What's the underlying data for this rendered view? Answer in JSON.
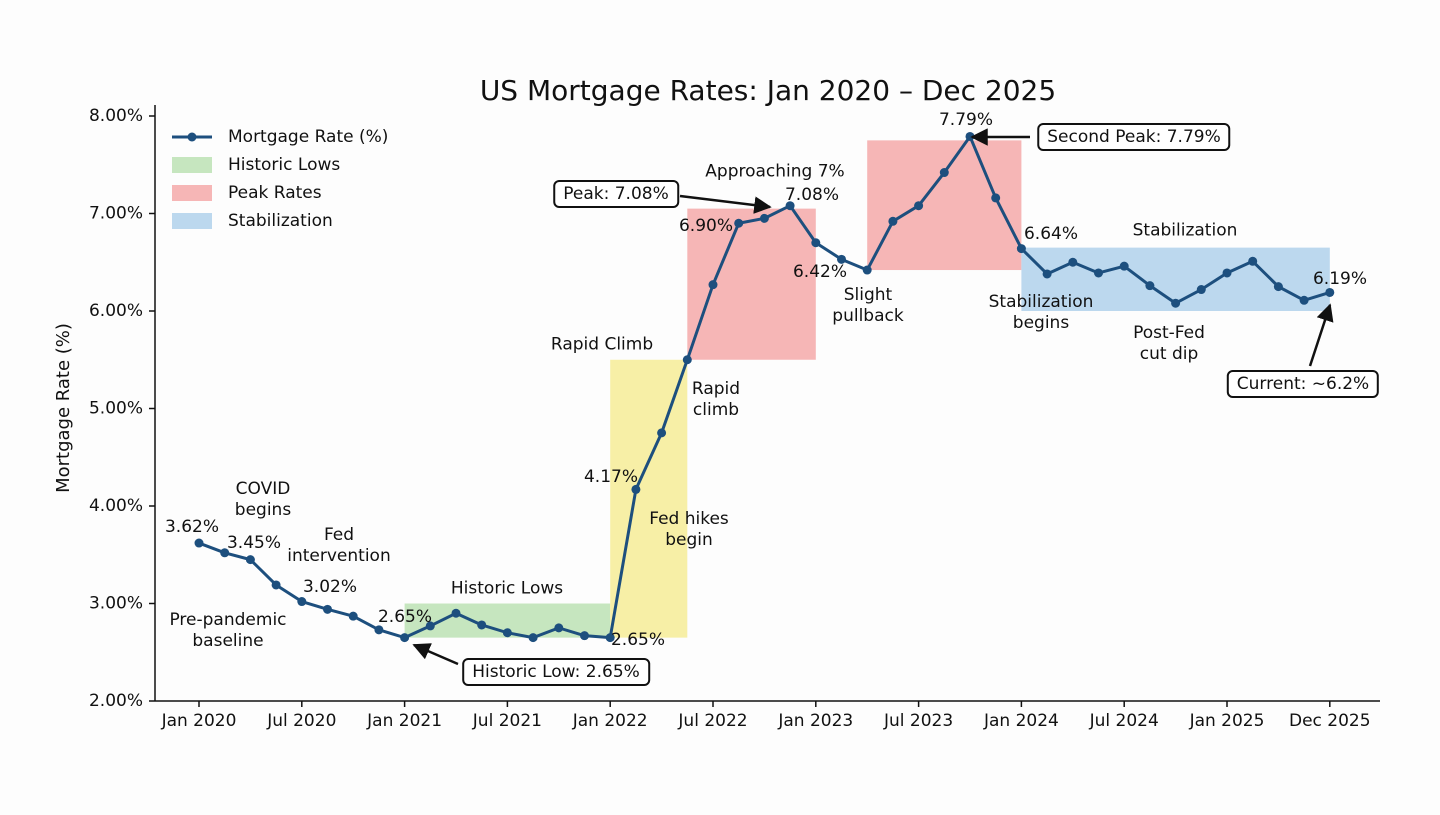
{
  "chart_data": {
    "type": "line",
    "title": "US Mortgage Rates: Jan 2020 – Dec 2025",
    "y_label": "Mortgage Rate (%)",
    "categories": [
      "Jan 2020",
      null,
      null,
      null,
      "Jul 2020",
      null,
      null,
      null,
      "Jan 2021",
      null,
      null,
      null,
      "Jul 2021",
      null,
      null,
      null,
      "Jan 2022",
      null,
      null,
      null,
      "Jul 2022",
      null,
      null,
      null,
      "Jan 2023",
      null,
      null,
      null,
      "Jul 2023",
      null,
      null,
      null,
      "Jan 2024",
      null,
      null,
      null,
      "Jul 2024",
      null,
      null,
      null,
      "Jan 2025",
      null,
      null,
      null,
      "Dec 2025"
    ],
    "series": [
      {
        "name": "Mortgage Rate (%)",
        "color": "#1d4f7e",
        "values": [
          3.62,
          3.52,
          3.45,
          3.19,
          3.02,
          2.94,
          2.87,
          2.73,
          2.65,
          2.77,
          2.9,
          2.78,
          2.7,
          2.65,
          2.75,
          2.67,
          2.65,
          4.17,
          4.75,
          5.5,
          6.27,
          6.9,
          6.95,
          7.08,
          6.7,
          6.53,
          6.42,
          6.92,
          7.08,
          7.42,
          7.79,
          7.16,
          6.64,
          6.38,
          6.5,
          6.39,
          6.46,
          6.26,
          6.08,
          6.22,
          6.39,
          6.51,
          6.25,
          6.11,
          6.19
        ],
        "value_labels": [
          "3.62%",
          null,
          "3.45%",
          null,
          "3.02%",
          null,
          null,
          null,
          "2.65%",
          null,
          null,
          null,
          null,
          null,
          null,
          null,
          "2.65%",
          "4.17%",
          null,
          null,
          null,
          "6.90%",
          null,
          "7.08%",
          null,
          null,
          "6.42%",
          null,
          null,
          null,
          "7.79%",
          null,
          "6.64%",
          null,
          null,
          null,
          null,
          null,
          null,
          null,
          null,
          null,
          null,
          null,
          "6.19%"
        ]
      }
    ],
    "regions": [
      {
        "name": "Historic Lows",
        "color": "#c6e6bf",
        "x": [
          8,
          16
        ],
        "y": [
          2.65,
          3.0
        ]
      },
      {
        "color": "#f7efa6",
        "x": [
          16,
          19
        ],
        "y": [
          2.65,
          5.5
        ]
      },
      {
        "name": "Peak Rates",
        "color": "#f6b6b6",
        "x": [
          19,
          24
        ],
        "y": [
          5.5,
          7.05
        ]
      },
      {
        "color": "#f6b6b6",
        "x": [
          26,
          32
        ],
        "y": [
          6.42,
          7.75
        ]
      },
      {
        "name": "Stabilization",
        "color": "#bcd8ee",
        "x": [
          32,
          44
        ],
        "y": [
          6.0,
          6.65
        ]
      }
    ],
    "ylim": [
      2,
      8
    ],
    "yticks": [
      {
        "value": 2,
        "label": "2.00%"
      },
      {
        "value": 3,
        "label": "3.00%"
      },
      {
        "value": 4,
        "label": "4.00%"
      },
      {
        "value": 5,
        "label": "5.00%"
      },
      {
        "value": 6,
        "label": "6.00%"
      },
      {
        "value": 7,
        "label": "7.00%"
      },
      {
        "value": 8,
        "label": "8.00%"
      }
    ],
    "legend": "upper left",
    "annotations": [
      "COVID\nbegins",
      "Fed\nintervention",
      "Pre-pandemic\nbaseline",
      "Historic Lows",
      "Rapid Climb",
      "Rapid\nclimb",
      "Fed hikes\nbegin",
      "Approaching 7%",
      "Slight\npullback",
      "Stabilization",
      "Stabilization\nbegins",
      "Post-Fed\ncut dip"
    ],
    "callouts": [
      "Peak: 7.08%",
      "Second Peak: 7.79%",
      "Historic Low: 2.65%",
      "Current: ~6.2%"
    ]
  }
}
